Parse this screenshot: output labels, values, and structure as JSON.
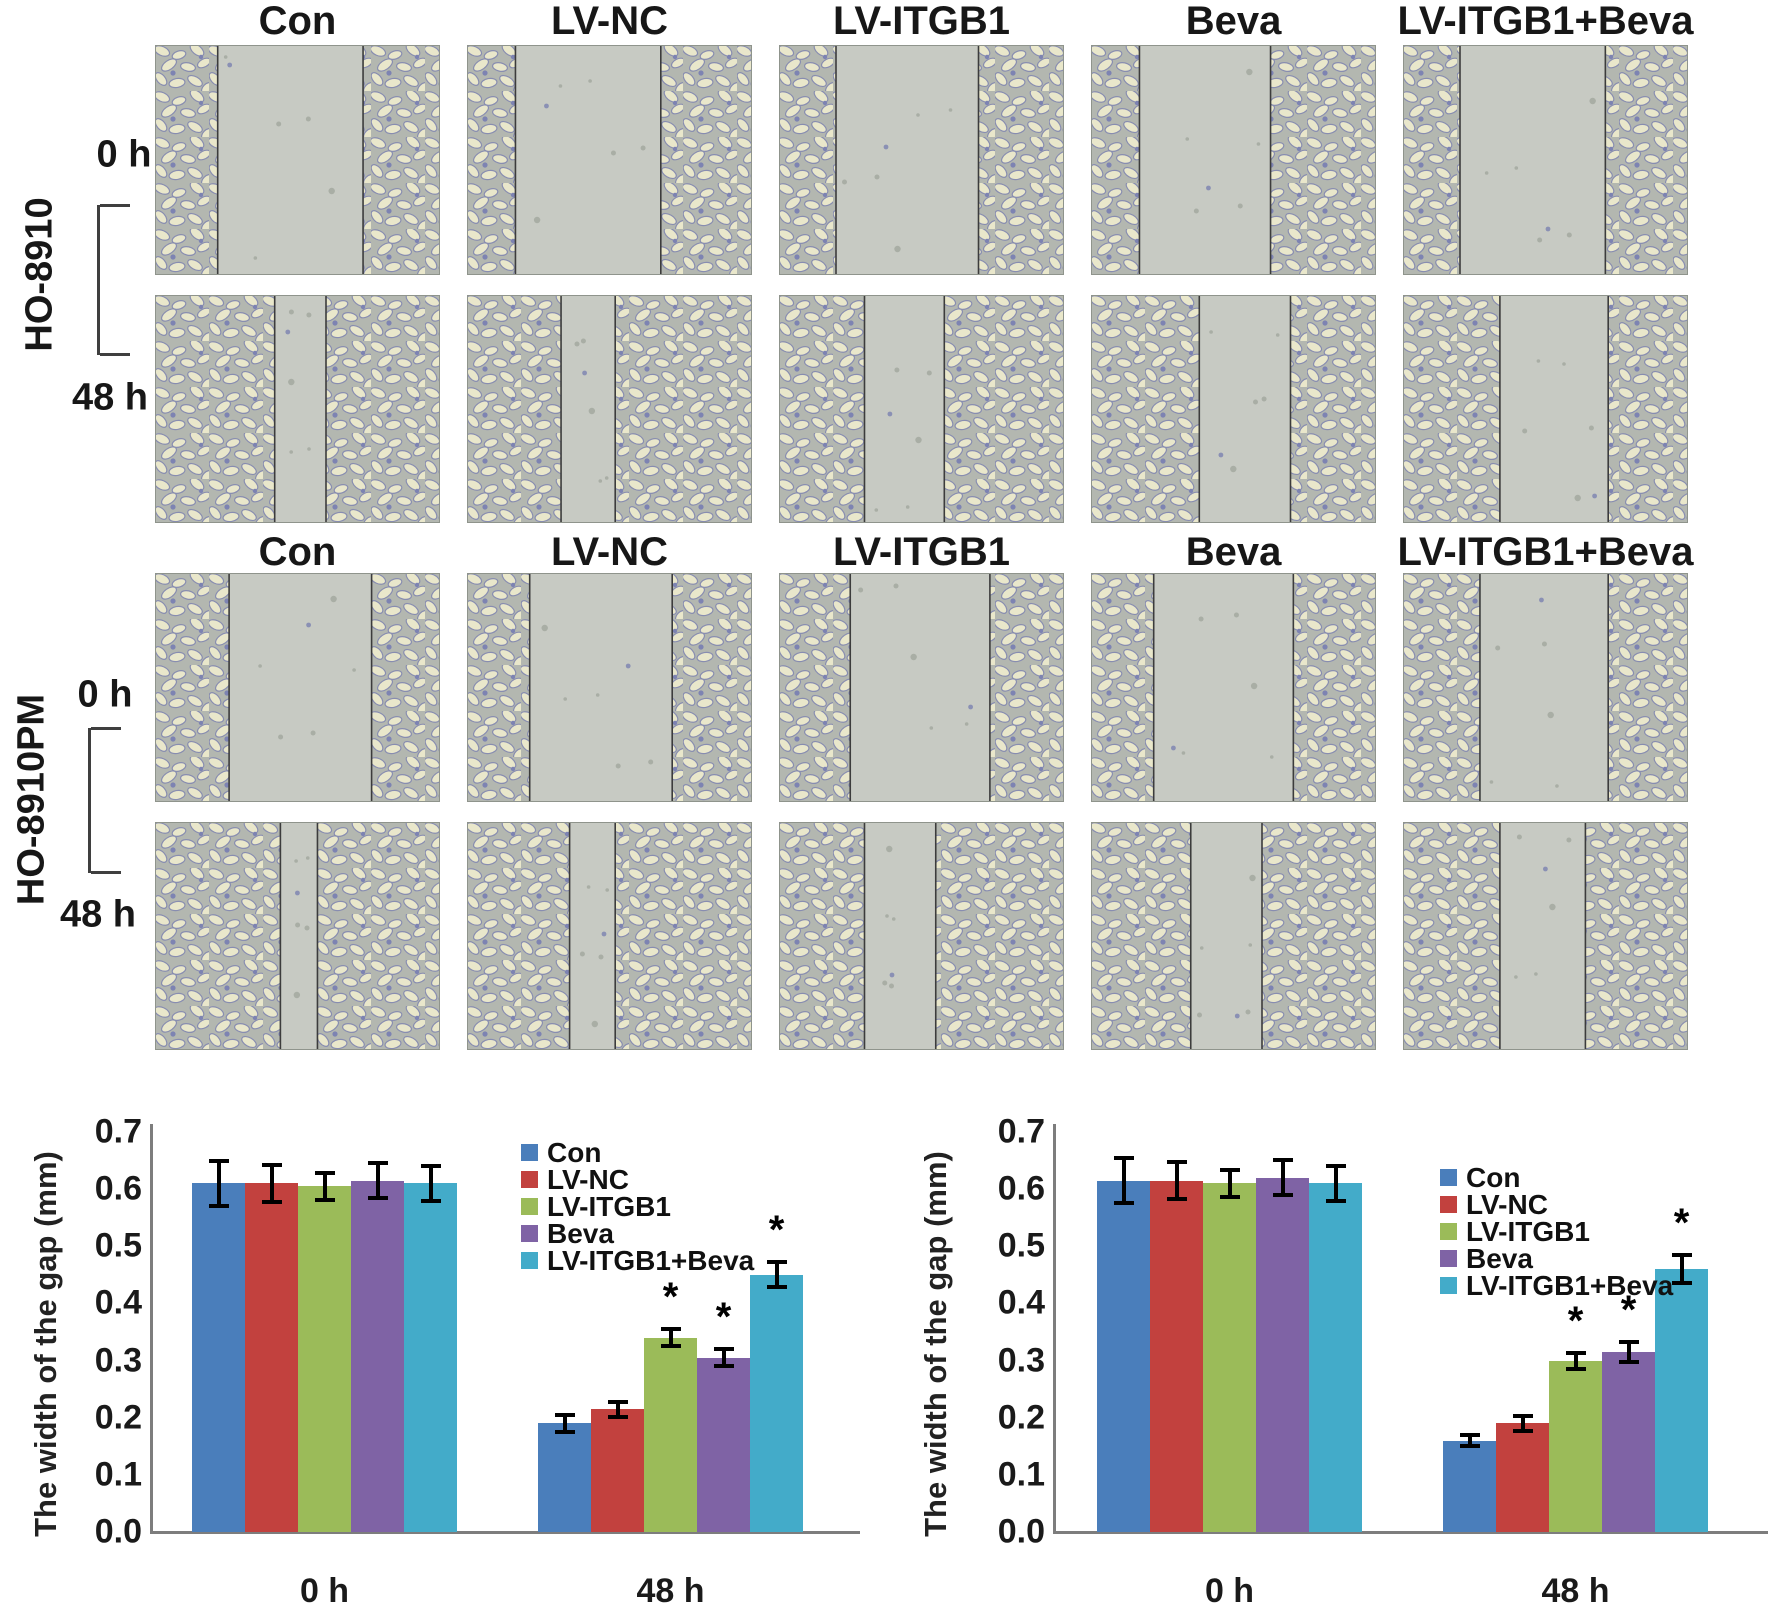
{
  "figure": {
    "description": "Wound-healing (scratch) assay micrographs for two ovarian cancer cell lines under five treatments, with quantification bar charts",
    "conditions": [
      "Con",
      "LV-NC",
      "LV-ITGB1",
      "Beva",
      "LV-ITGB1+Beva"
    ],
    "timepoints": [
      "0 h",
      "48 h"
    ],
    "blocks": [
      {
        "cell_line": "HO-8910",
        "conditions": [
          "Con",
          "LV-NC",
          "LV-ITGB1",
          "Beva",
          "LV-ITGB1+Beva"
        ],
        "rows": [
          {
            "time": "0 h",
            "gaps": [
              [
                0.22,
                0.73
              ],
              [
                0.17,
                0.68
              ],
              [
                0.2,
                0.7
              ],
              [
                0.17,
                0.63
              ],
              [
                0.2,
                0.71
              ]
            ]
          },
          {
            "time": "48 h",
            "gaps": [
              [
                0.42,
                0.6
              ],
              [
                0.33,
                0.52
              ],
              [
                0.3,
                0.58
              ],
              [
                0.38,
                0.7
              ],
              [
                0.34,
                0.72
              ]
            ]
          }
        ]
      },
      {
        "cell_line": "HO-8910PM",
        "conditions": [
          "Con",
          "LV-NC",
          "LV-ITGB1",
          "Beva",
          "LV-ITGB1+Beva"
        ],
        "rows": [
          {
            "time": "0 h",
            "gaps": [
              [
                0.26,
                0.76
              ],
              [
                0.22,
                0.72
              ],
              [
                0.25,
                0.74
              ],
              [
                0.22,
                0.71
              ],
              [
                0.27,
                0.72
              ]
            ]
          },
          {
            "time": "48 h",
            "gaps": [
              [
                0.44,
                0.57
              ],
              [
                0.36,
                0.52
              ],
              [
                0.3,
                0.55
              ],
              [
                0.35,
                0.6
              ],
              [
                0.34,
                0.64
              ]
            ]
          }
        ]
      }
    ],
    "micrograph_colors": {
      "cells_base": "#b5b8b1",
      "gap_fill": "#c7cac3",
      "scratch_line": "#3c3c3c"
    }
  },
  "chart_data": [
    {
      "type": "bar",
      "cell_line": "HO-8910",
      "ylabel": "The width of the gap (mm)",
      "ylim": [
        0,
        0.7
      ],
      "yticks": [
        "0.0",
        "0.1",
        "0.2",
        "0.3",
        "0.4",
        "0.5",
        "0.6",
        "0.7"
      ],
      "categories": [
        "0 h",
        "48 h"
      ],
      "legend_position": "inner-right",
      "grid": false,
      "series": [
        {
          "name": "Con",
          "color": "#4a7ebb",
          "values": [
            0.61,
            0.19
          ],
          "errors": [
            0.04,
            0.015
          ],
          "sig": [
            false,
            false
          ]
        },
        {
          "name": "LV-NC",
          "color": "#c2413e",
          "values": [
            0.61,
            0.215
          ],
          "errors": [
            0.032,
            0.013
          ],
          "sig": [
            false,
            false
          ]
        },
        {
          "name": "LV-ITGB1",
          "color": "#9bbb59",
          "values": [
            0.605,
            0.34
          ],
          "errors": [
            0.024,
            0.015
          ],
          "sig": [
            false,
            true
          ]
        },
        {
          "name": "Beva",
          "color": "#7f63a5",
          "values": [
            0.615,
            0.305
          ],
          "errors": [
            0.03,
            0.015
          ],
          "sig": [
            false,
            true
          ]
        },
        {
          "name": "LV-ITGB1+Beva",
          "color": "#43abc9",
          "values": [
            0.61,
            0.45
          ],
          "errors": [
            0.03,
            0.022
          ],
          "sig": [
            false,
            true
          ]
        }
      ],
      "sig_marker": "*"
    },
    {
      "type": "bar",
      "cell_line": "HO-8910PM",
      "ylabel": "The width of the gap (mm)",
      "ylim": [
        0,
        0.7
      ],
      "yticks": [
        "0.0",
        "0.1",
        "0.2",
        "0.3",
        "0.4",
        "0.5",
        "0.6",
        "0.7"
      ],
      "categories": [
        "0 h",
        "48 h"
      ],
      "legend_position": "inner-right",
      "grid": false,
      "series": [
        {
          "name": "Con",
          "color": "#4a7ebb",
          "values": [
            0.615,
            0.16
          ],
          "errors": [
            0.04,
            0.01
          ],
          "sig": [
            false,
            false
          ]
        },
        {
          "name": "LV-NC",
          "color": "#c2413e",
          "values": [
            0.615,
            0.19
          ],
          "errors": [
            0.032,
            0.013
          ],
          "sig": [
            false,
            false
          ]
        },
        {
          "name": "LV-ITGB1",
          "color": "#9bbb59",
          "values": [
            0.61,
            0.3
          ],
          "errors": [
            0.024,
            0.014
          ],
          "sig": [
            false,
            true
          ]
        },
        {
          "name": "Beva",
          "color": "#7f63a5",
          "values": [
            0.62,
            0.315
          ],
          "errors": [
            0.031,
            0.018
          ],
          "sig": [
            false,
            true
          ]
        },
        {
          "name": "LV-ITGB1+Beva",
          "color": "#43abc9",
          "values": [
            0.61,
            0.46
          ],
          "errors": [
            0.03,
            0.025
          ],
          "sig": [
            false,
            true
          ]
        }
      ],
      "sig_marker": "*"
    }
  ]
}
